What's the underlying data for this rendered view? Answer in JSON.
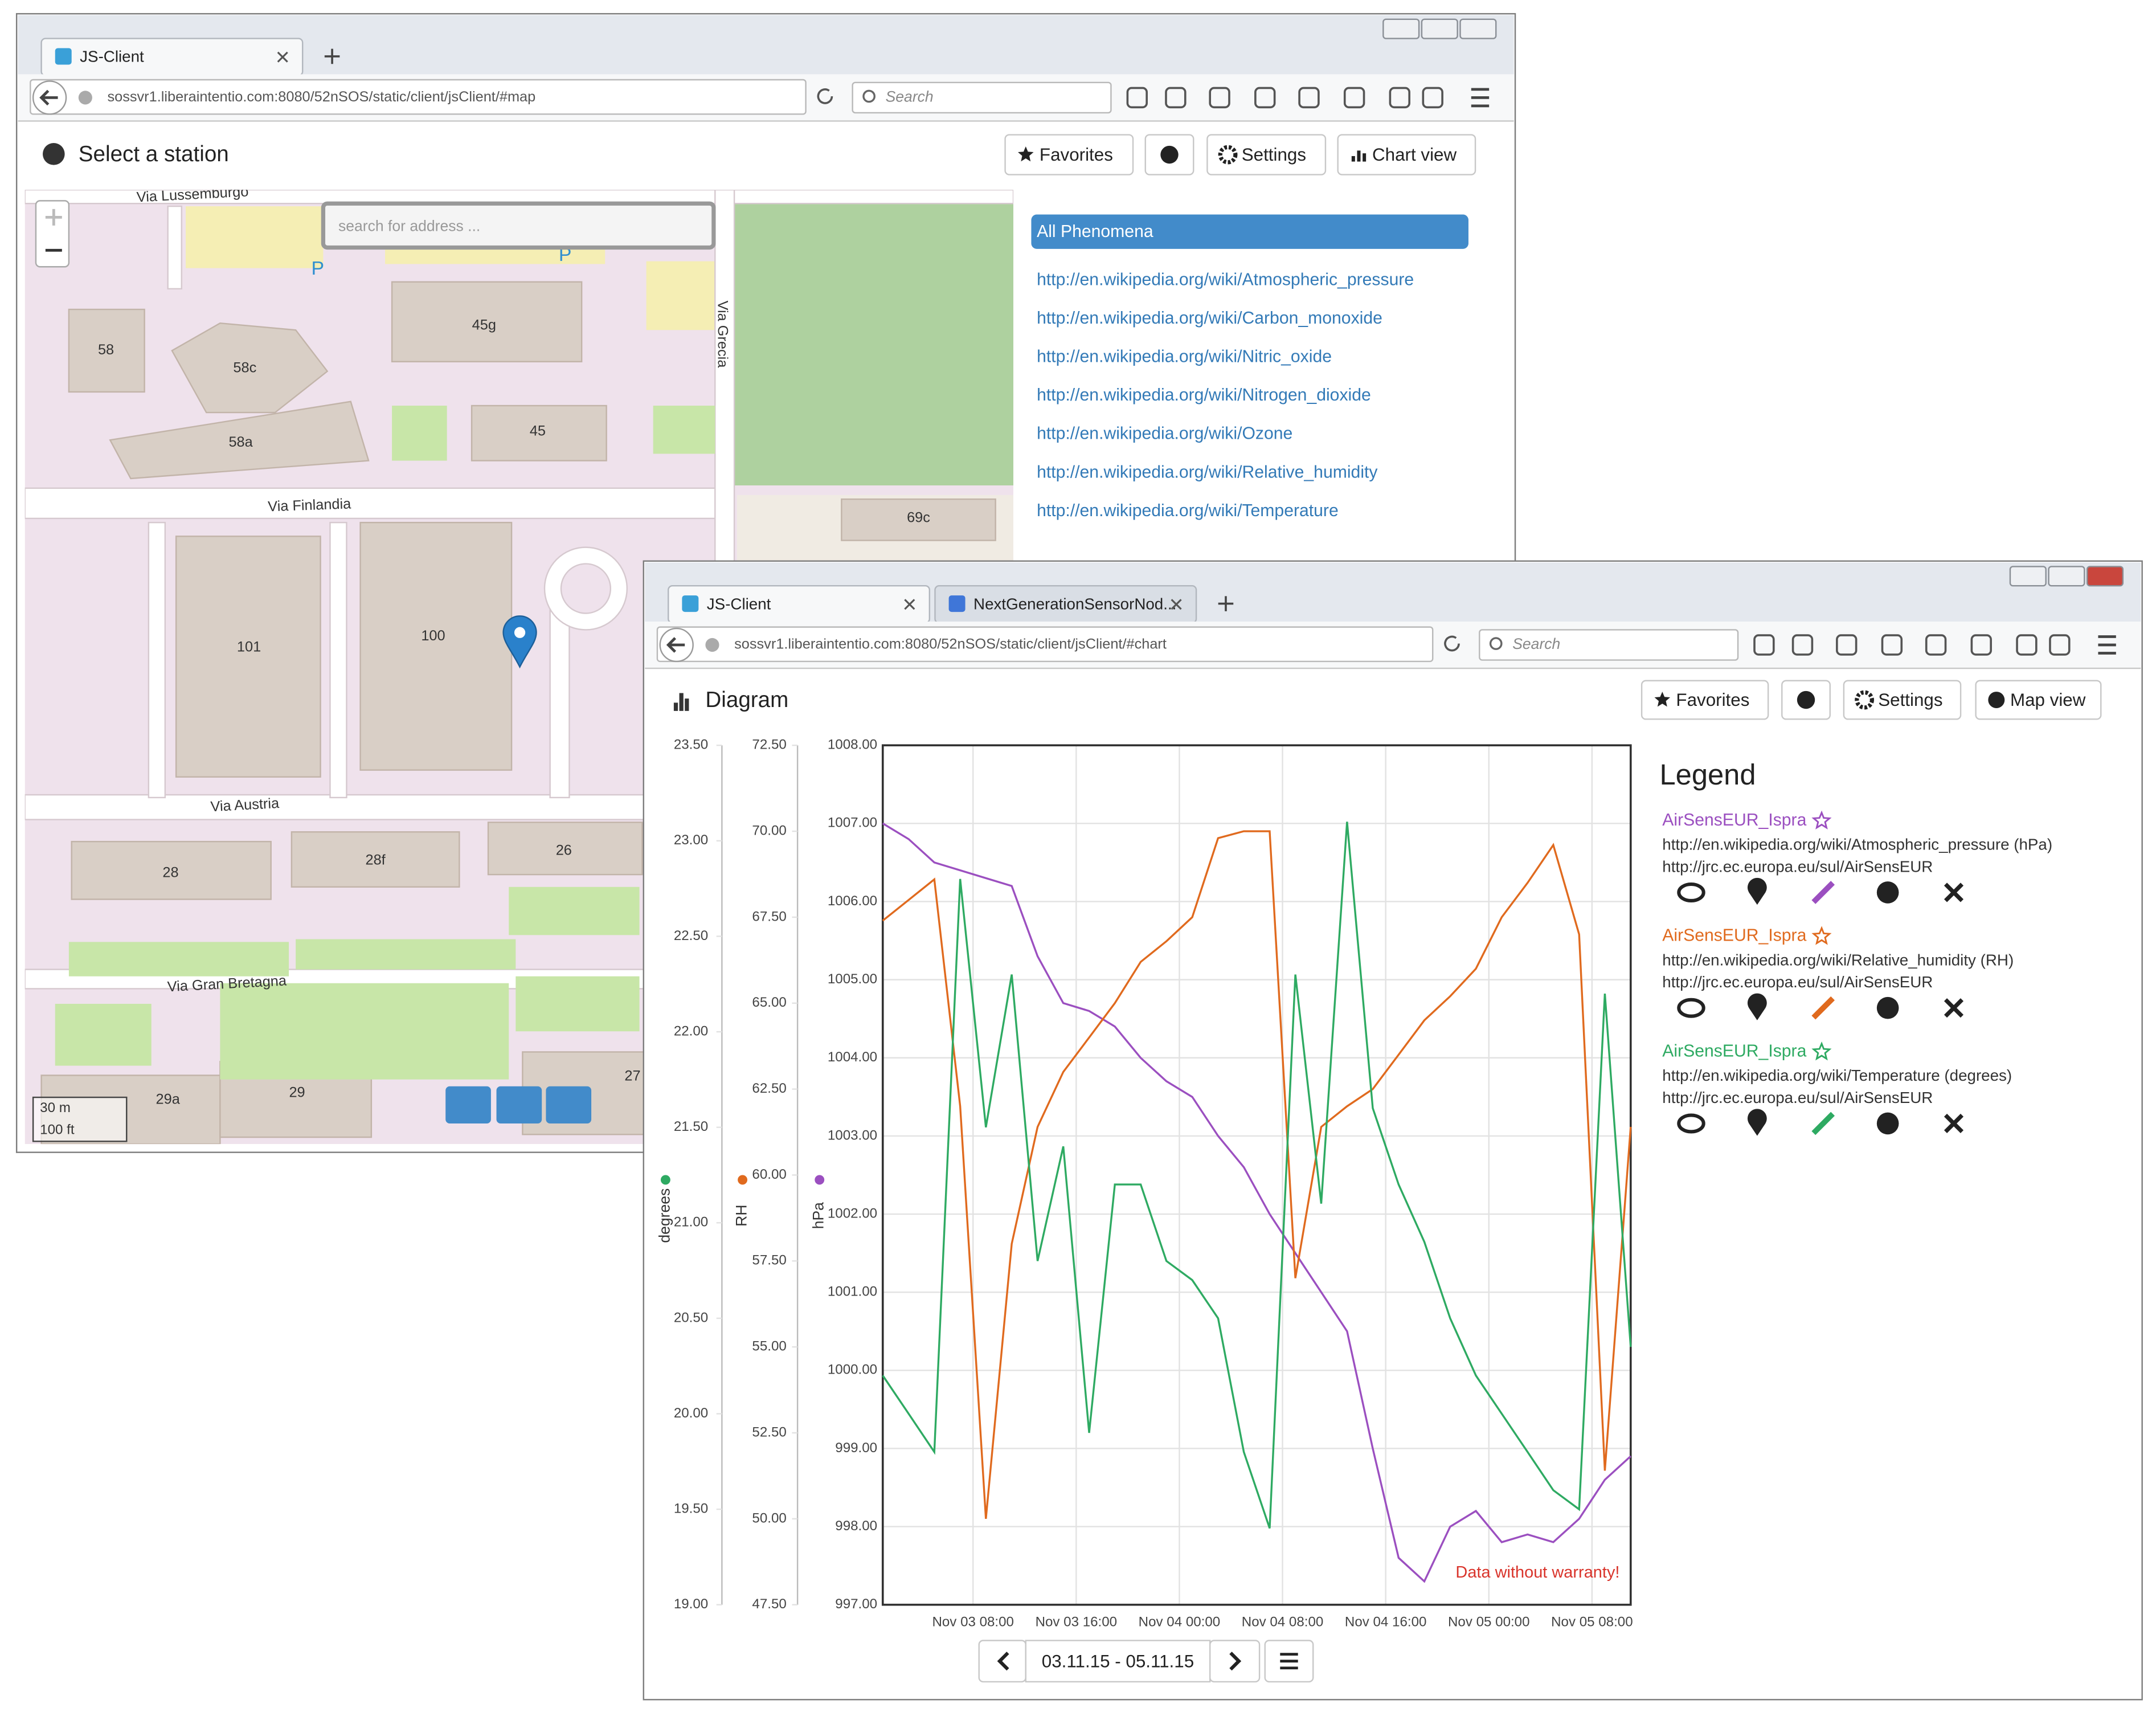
{
  "window_map": {
    "tabs": [
      "JS-Client"
    ],
    "url": "sossvr1.liberaintentio.com:8080/52nSOS/static/client/jsClient/#map",
    "search_placeholder": "Search",
    "title": "Select a station",
    "buttons": [
      "Favorites",
      "Settings",
      "Chart view"
    ],
    "address_placeholder": "search for address ...",
    "map_labels": [
      "Via Lussemburgo",
      "58",
      "58c",
      "45g",
      "58a",
      "45",
      "Via Grecia",
      "Via Finlandia",
      "69c",
      "101",
      "100",
      "Via Austria",
      "28",
      "28f",
      "26",
      "Via Gran Bretagna",
      "29a",
      "29",
      "27",
      "P",
      "P"
    ],
    "scale": [
      "30 m",
      "100 ft"
    ],
    "phenomena": [
      "All Phenomena",
      "http://en.wikipedia.org/wiki/Atmospheric_pressure",
      "http://en.wikipedia.org/wiki/Carbon_monoxide",
      "http://en.wikipedia.org/wiki/Nitric_oxide",
      "http://en.wikipedia.org/wiki/Nitrogen_dioxide",
      "http://en.wikipedia.org/wiki/Ozone",
      "http://en.wikipedia.org/wiki/Relative_humidity",
      "http://en.wikipedia.org/wiki/Temperature"
    ]
  },
  "window_chart": {
    "tabs": [
      "JS-Client",
      "NextGenerationSensorNod..."
    ],
    "url": "sossvr1.liberaintentio.com:8080/52nSOS/static/client/jsClient/#chart",
    "search_placeholder": "Search",
    "title": "Diagram",
    "buttons": [
      "Favorites",
      "Settings",
      "Map view"
    ],
    "date_range": "03.11.15 - 05.11.15",
    "chart": {
      "type": "line",
      "x": [
        1,
        3,
        5,
        7,
        9,
        11,
        13,
        15,
        17,
        19,
        21,
        23,
        25,
        27,
        29,
        31,
        33,
        35,
        37,
        39,
        41,
        43,
        45,
        47,
        49,
        51,
        53,
        55,
        57,
        59
      ],
      "xlim": [
        1,
        59
      ],
      "xticks": [
        {
          "value": 8,
          "label": "Nov 03 08:00"
        },
        {
          "value": 16,
          "label": "Nov 03 16:00"
        },
        {
          "value": 24,
          "label": "Nov 04 00:00"
        },
        {
          "value": 32,
          "label": "Nov 04 08:00"
        },
        {
          "value": 40,
          "label": "Nov 04 16:00"
        },
        {
          "value": 48,
          "label": "Nov 05 00:00"
        },
        {
          "value": 56,
          "label": "Nov 05 08:00"
        }
      ],
      "ylim": [
        997,
        1008
      ],
      "yticks": [
        {
          "value": 997,
          "label": "997.00"
        },
        {
          "value": 998,
          "label": "998.00"
        },
        {
          "value": 999,
          "label": "999.00"
        },
        {
          "value": 1000,
          "label": "1000.00"
        },
        {
          "value": 1001,
          "label": "1001.00"
        },
        {
          "value": 1002,
          "label": "1002.00"
        },
        {
          "value": 1003,
          "label": "1003.00"
        },
        {
          "value": 1004,
          "label": "1004.00"
        },
        {
          "value": 1005,
          "label": "1005.00"
        },
        {
          "value": 1006,
          "label": "1006.00"
        },
        {
          "value": 1007,
          "label": "1007.00"
        },
        {
          "value": 1008,
          "label": "1008.00"
        }
      ],
      "y_label": "hPa",
      "y2lim": [
        47.5,
        72.5
      ],
      "y2ticks": [
        {
          "value": 47.5,
          "label": "47.50"
        },
        {
          "value": 50,
          "label": "50.00"
        },
        {
          "value": 52.5,
          "label": "52.50"
        },
        {
          "value": 55,
          "label": "55.00"
        },
        {
          "value": 57.5,
          "label": "57.50"
        },
        {
          "value": 60,
          "label": "60.00"
        },
        {
          "value": 62.5,
          "label": "62.50"
        },
        {
          "value": 65,
          "label": "65.00"
        },
        {
          "value": 67.5,
          "label": "67.50"
        },
        {
          "value": 70,
          "label": "70.00"
        },
        {
          "value": 72.5,
          "label": "72.50"
        }
      ],
      "y2_label": "RH",
      "y3lim": [
        19,
        23.5
      ],
      "y3ticks": [
        {
          "value": 19,
          "label": "19.00"
        },
        {
          "value": 19.5,
          "label": "19.50"
        },
        {
          "value": 20,
          "label": "20.00"
        },
        {
          "value": 20.5,
          "label": "20.50"
        },
        {
          "value": 21,
          "label": "21.00"
        },
        {
          "value": 21.5,
          "label": "21.50"
        },
        {
          "value": 22,
          "label": "22.00"
        },
        {
          "value": 22.5,
          "label": "22.50"
        },
        {
          "value": 23,
          "label": "23.00"
        },
        {
          "value": 23.5,
          "label": "23.50"
        }
      ],
      "y3_label": "degrees",
      "grid": true,
      "annotation": "Data without warranty!",
      "series": [
        {
          "name": "AirSensEUR_Ispra",
          "color": "#9b4fc0",
          "axis": "y",
          "values": [
            1007.0,
            1006.8,
            1006.5,
            1006.4,
            1006.3,
            1006.2,
            1005.3,
            1004.7,
            1004.6,
            1004.4,
            1004.0,
            1003.7,
            1003.5,
            1003.0,
            1002.6,
            1002.0,
            1001.5,
            1001.0,
            1000.5,
            999.0,
            997.6,
            997.3,
            998.0,
            998.2,
            997.8,
            997.9,
            997.8,
            998.1,
            998.6,
            998.9
          ]
        },
        {
          "name": "AirSensEUR_Ispra",
          "color": "#e06a1e",
          "axis": "y2",
          "values": [
            67.4,
            68,
            68.6,
            62,
            50,
            58,
            61.4,
            63,
            64,
            65,
            66.2,
            66.8,
            67.5,
            69.8,
            70,
            70,
            57,
            61.4,
            62,
            62.5,
            63.5,
            64.5,
            65.2,
            66,
            67.5,
            68.5,
            69.6,
            67,
            51.4,
            61.4
          ]
        },
        {
          "name": "AirSensEUR_Ispra",
          "color": "#2eaa62",
          "axis": "y3",
          "values": [
            20.2,
            20.0,
            19.8,
            22.8,
            21.5,
            22.3,
            20.8,
            21.4,
            19.9,
            21.2,
            21.2,
            20.8,
            20.7,
            20.5,
            19.8,
            19.4,
            22.3,
            21.1,
            23.1,
            21.6,
            21.2,
            20.9,
            20.5,
            20.2,
            20.0,
            19.8,
            19.6,
            19.5,
            22.2,
            20.35
          ]
        }
      ]
    },
    "legend": {
      "title": "Legend",
      "entries": [
        {
          "phenomenon": "http://en.wikipedia.org/wiki/Atmospheric_pressure (hPa)",
          "url": "http://jrc.ec.europa.eu/sul/AirSensEUR"
        },
        {
          "phenomenon": "http://en.wikipedia.org/wiki/Relative_humidity (RH)",
          "url": "http://jrc.ec.europa.eu/sul/AirSensEUR"
        },
        {
          "phenomenon": "http://en.wikipedia.org/wiki/Temperature (degrees)",
          "url": "http://jrc.ec.europa.eu/sul/AirSensEUR"
        }
      ]
    }
  }
}
